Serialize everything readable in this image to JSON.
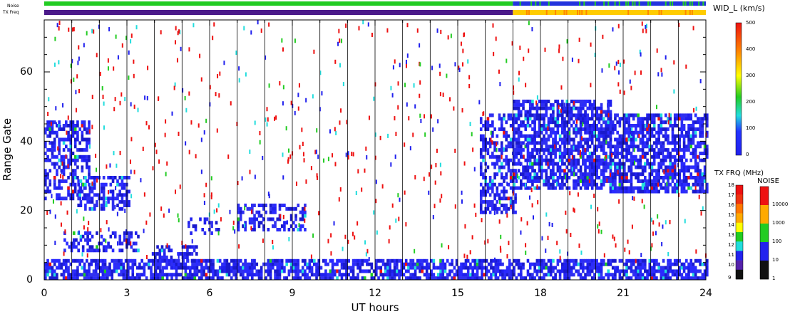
{
  "chart_data": {
    "type": "heatmap",
    "xlabel": "UT hours",
    "ylabel": "Range Gate",
    "xlim": [
      0,
      24
    ],
    "ylim": [
      0,
      75
    ],
    "x_ticks": [
      "0",
      "3",
      "6",
      "9",
      "12",
      "15",
      "18",
      "21",
      "24"
    ],
    "y_ticks": [
      "0",
      "20",
      "40",
      "60"
    ],
    "top_bars": [
      {
        "label": "Noise",
        "color": "#22cc22",
        "after_17_color": "#2233dd"
      },
      {
        "label": "TX Freq",
        "color": "#4b1a8a",
        "after_17_color": "#ffcc00"
      }
    ],
    "colorbar_main": {
      "title": "WID_L (km/s)",
      "ticks": [
        "500",
        "400",
        "300",
        "200",
        "100",
        "0"
      ],
      "range": [
        0,
        500
      ]
    },
    "colorbar_txfreq": {
      "title": "TX FRQ (MHz)",
      "ticks": [
        "18",
        "17",
        "16",
        "15",
        "14",
        "13",
        "12",
        "11",
        "10",
        "9"
      ],
      "colors": [
        "#ee1111",
        "#ee3311",
        "#ff7700",
        "#ffaa00",
        "#ffff00",
        "#22cc22",
        "#22dddd",
        "#2222ee",
        "#5522aa",
        "#111111"
      ]
    },
    "colorbar_noise": {
      "title": "NOISE",
      "ticks": [
        "10000",
        "1000",
        "100",
        "10",
        "1"
      ],
      "colors": [
        "#ee1111",
        "#ffaa00",
        "#22cc22",
        "#2222ee",
        "#111111"
      ]
    },
    "echo_regions": [
      {
        "x0": 0.0,
        "x1": 1.6,
        "y0": 23,
        "y1": 46,
        "density": 0.55
      },
      {
        "x0": 1.2,
        "x1": 3.1,
        "y0": 20,
        "y1": 30,
        "density": 0.5
      },
      {
        "x0": 0.7,
        "x1": 3.4,
        "y0": 8,
        "y1": 14,
        "density": 0.45
      },
      {
        "x0": 3.9,
        "x1": 5.5,
        "y0": 3,
        "y1": 10,
        "density": 0.5
      },
      {
        "x0": 7.0,
        "x1": 9.5,
        "y0": 14,
        "y1": 22,
        "density": 0.45
      },
      {
        "x0": 5.2,
        "x1": 6.4,
        "y0": 13,
        "y1": 18,
        "density": 0.3
      },
      {
        "x0": 0.0,
        "x1": 24.0,
        "y0": 0,
        "y1": 6,
        "density": 0.7
      },
      {
        "x0": 15.8,
        "x1": 17.1,
        "y0": 19,
        "y1": 48,
        "density": 0.55
      },
      {
        "x0": 17.0,
        "x1": 20.5,
        "y0": 26,
        "y1": 52,
        "density": 0.7
      },
      {
        "x0": 20.5,
        "x1": 24.0,
        "y0": 25,
        "y1": 48,
        "density": 0.7
      }
    ]
  }
}
